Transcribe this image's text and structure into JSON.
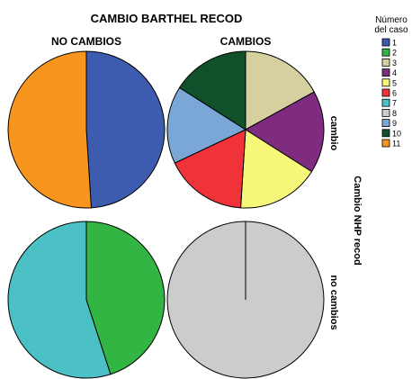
{
  "chart_data": {
    "type": "pie",
    "title": "CAMBIO BARTHEL RECOD",
    "column_variable": "CAMBIO BARTHEL RECOD",
    "row_variable": "Cambio NHP recod",
    "columns": [
      "NO CAMBIOS",
      "CAMBIOS"
    ],
    "rows": [
      "cambio",
      "no cambios"
    ],
    "legend": {
      "title": [
        "Número",
        "del caso"
      ],
      "placement": "right",
      "entries": [
        {
          "label": "1",
          "color": "#3d5cb0"
        },
        {
          "label": "2",
          "color": "#33b544"
        },
        {
          "label": "3",
          "color": "#d6cfa0"
        },
        {
          "label": "4",
          "color": "#7f2b80"
        },
        {
          "label": "5",
          "color": "#f7f77a"
        },
        {
          "label": "6",
          "color": "#ef3338"
        },
        {
          "label": "7",
          "color": "#4bc1c6"
        },
        {
          "label": "8",
          "color": "#cccccc"
        },
        {
          "label": "9",
          "color": "#7ba7d6"
        },
        {
          "label": "10",
          "color": "#10502a"
        },
        {
          "label": "11",
          "color": "#f7951e"
        }
      ]
    },
    "pies": [
      {
        "row": "cambio",
        "column": "NO CAMBIOS",
        "slices": [
          {
            "case": "1",
            "value": 49
          },
          {
            "case": "11",
            "value": 51
          }
        ]
      },
      {
        "row": "cambio",
        "column": "CAMBIOS",
        "slices": [
          {
            "case": "3",
            "value": 17
          },
          {
            "case": "4",
            "value": 17
          },
          {
            "case": "5",
            "value": 17
          },
          {
            "case": "6",
            "value": 17
          },
          {
            "case": "9",
            "value": 16
          },
          {
            "case": "10",
            "value": 16
          }
        ]
      },
      {
        "row": "no cambios",
        "column": "NO CAMBIOS",
        "slices": [
          {
            "case": "2",
            "value": 45
          },
          {
            "case": "7",
            "value": 55
          }
        ]
      },
      {
        "row": "no cambios",
        "column": "CAMBIOS",
        "slices": [
          {
            "case": "8",
            "value": 100
          }
        ]
      }
    ]
  }
}
